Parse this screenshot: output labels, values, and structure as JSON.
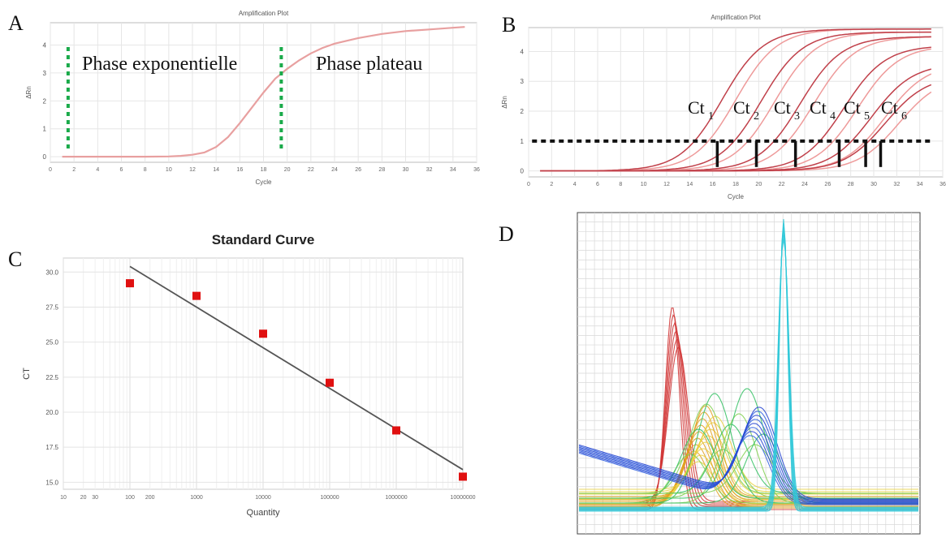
{
  "panels": {
    "a": {
      "letter": "A",
      "title": "Amplification Plot",
      "xlabel": "Cycle",
      "ylabel": "ΔRn",
      "phase_exp": "Phase exponentielle",
      "phase_plateau": "Phase plateau",
      "colors": {
        "curve": "#e8a0a0",
        "phase_line": "#1aaa4a",
        "grid": "#e6e6e6"
      }
    },
    "b": {
      "letter": "B",
      "title": "Amplification Plot",
      "xlabel": "Cycle",
      "ylabel": "ΔRn",
      "ct_labels": [
        {
          "main": "Ct",
          "sub": "1"
        },
        {
          "main": "Ct",
          "sub": "2"
        },
        {
          "main": "Ct",
          "sub": "3"
        },
        {
          "main": "Ct",
          "sub": "4"
        },
        {
          "main": "Ct",
          "sub": "5"
        },
        {
          "main": "Ct",
          "sub": "6"
        }
      ],
      "colors": {
        "curve_dark": "#c0404a",
        "curve_light": "#ee9a9a"
      }
    },
    "c": {
      "letter": "C",
      "title": "Standard Curve",
      "xlabel": "Quantity",
      "ylabel": "CT",
      "colors": {
        "point": "#e01010",
        "line": "#555555"
      }
    },
    "d": {
      "letter": "D"
    }
  },
  "chart_data": [
    {
      "id": "A",
      "type": "line",
      "title": "Amplification Plot",
      "xlabel": "Cycle",
      "ylabel": "ΔRn",
      "xlim": [
        0,
        36
      ],
      "ylim": [
        -0.2,
        4.8
      ],
      "xticks": [
        0,
        2,
        4,
        6,
        8,
        10,
        12,
        14,
        16,
        18,
        20,
        22,
        24,
        26,
        28,
        30,
        32,
        34,
        36
      ],
      "yticks": [
        0,
        1,
        2,
        3,
        4
      ],
      "grid": true,
      "series": [
        {
          "x": [
            1,
            4,
            8,
            10,
            11,
            12,
            13,
            14,
            15,
            16,
            17,
            18,
            19,
            20,
            21,
            22,
            23,
            24,
            26,
            28,
            30,
            32,
            34,
            35
          ],
          "y": [
            0,
            0,
            0,
            0.01,
            0.03,
            0.07,
            0.15,
            0.35,
            0.7,
            1.2,
            1.75,
            2.3,
            2.8,
            3.15,
            3.45,
            3.7,
            3.9,
            4.05,
            4.25,
            4.4,
            4.5,
            4.56,
            4.62,
            4.65
          ]
        }
      ],
      "annotations": [
        {
          "text": "Phase exponentielle",
          "x": 1.5
        },
        {
          "text": "Phase plateau",
          "x": 19.5
        }
      ]
    },
    {
      "id": "B",
      "type": "line",
      "title": "Amplification Plot",
      "xlabel": "Cycle",
      "ylabel": "ΔRn",
      "xlim": [
        0,
        36
      ],
      "ylim": [
        -0.2,
        4.8
      ],
      "xticks": [
        0,
        2,
        4,
        6,
        8,
        10,
        12,
        14,
        16,
        18,
        20,
        22,
        24,
        26,
        28,
        30,
        32,
        34,
        36
      ],
      "yticks": [
        0,
        1,
        2,
        3,
        4
      ],
      "grid": true,
      "threshold": 1.0,
      "ct_values": [
        16.4,
        19.8,
        23.2,
        27.0,
        29.3,
        30.6
      ],
      "series": [
        {
          "midpoint": 17.2,
          "plateau": 4.75
        },
        {
          "midpoint": 20.6,
          "plateau": 4.65
        },
        {
          "midpoint": 24.0,
          "plateau": 4.5
        },
        {
          "midpoint": 27.8,
          "plateau": 4.2
        },
        {
          "midpoint": 30.2,
          "plateau": 3.6
        },
        {
          "midpoint": 31.4,
          "plateau": 3.2
        }
      ]
    },
    {
      "id": "C",
      "type": "scatter",
      "title": "Standard Curve",
      "xlabel": "Quantity",
      "ylabel": "CT",
      "xscale": "log",
      "xlim": [
        10,
        10000000
      ],
      "ylim": [
        14.5,
        31
      ],
      "xtick_labels": [
        "10",
        "20",
        "30",
        "100",
        "200",
        "1000",
        "10000",
        "100000",
        "1000000",
        "10000000"
      ],
      "yticks": [
        15.0,
        17.5,
        20.0,
        22.5,
        25.0,
        27.5,
        30.0
      ],
      "grid": true,
      "points": {
        "x": [
          100,
          1000,
          10000,
          100000,
          1000000,
          10000000
        ],
        "y": [
          29.2,
          28.3,
          25.6,
          22.1,
          18.7,
          15.4
        ]
      },
      "fit_line": {
        "x": [
          100,
          10000000
        ],
        "y": [
          30.4,
          15.9
        ]
      }
    },
    {
      "id": "D",
      "type": "line",
      "title": "",
      "grid": true,
      "series_colors": [
        "#d03030",
        "#e0a020",
        "#e8d040",
        "#30c060",
        "#80d050",
        "#2040d0",
        "#3060e0",
        "#30c8d8"
      ]
    }
  ]
}
